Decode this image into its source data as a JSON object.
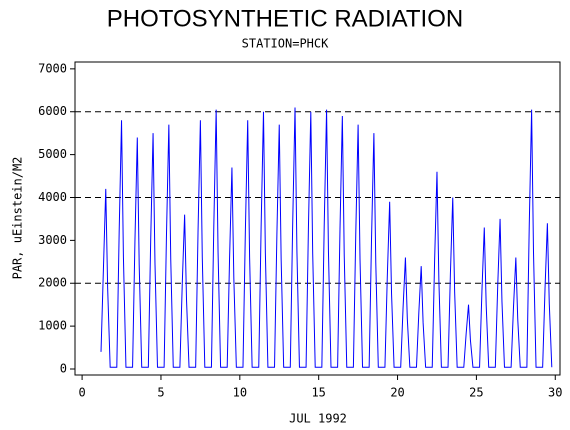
{
  "chart_data": {
    "type": "line",
    "title": "PHOTOSYNTHETIC RADIATION",
    "subtitle": "STATION=PHCK",
    "xlabel": "JUL 1992",
    "ylabel": "PAR, uEinstein/M2",
    "xlim": [
      -0.45,
      30.3
    ],
    "xticks": [
      0,
      5,
      10,
      15,
      20,
      25,
      30
    ],
    "ylim": [
      -140,
      7160
    ],
    "yticks": [
      0,
      1000,
      2000,
      3000,
      4000,
      5000,
      6000,
      7000
    ],
    "reference_lines": [
      2000,
      4000,
      6000
    ],
    "x": [
      1.2,
      1.35,
      1.5,
      1.62,
      1.78,
      2.2,
      2.35,
      2.5,
      2.62,
      2.78,
      3.2,
      3.35,
      3.5,
      3.62,
      3.78,
      4.2,
      4.35,
      4.5,
      4.62,
      4.78,
      5.2,
      5.35,
      5.5,
      5.62,
      5.78,
      6.2,
      6.35,
      6.5,
      6.62,
      6.78,
      7.2,
      7.35,
      7.5,
      7.62,
      7.78,
      8.2,
      8.35,
      8.5,
      8.62,
      8.78,
      9.2,
      9.35,
      9.5,
      9.62,
      9.78,
      10.2,
      10.35,
      10.5,
      10.62,
      10.78,
      11.2,
      11.35,
      11.5,
      11.62,
      11.78,
      12.2,
      12.35,
      12.5,
      12.62,
      12.78,
      13.2,
      13.35,
      13.5,
      13.62,
      13.78,
      14.2,
      14.35,
      14.5,
      14.62,
      14.78,
      15.2,
      15.35,
      15.5,
      15.62,
      15.78,
      16.2,
      16.35,
      16.5,
      16.62,
      16.78,
      17.2,
      17.35,
      17.5,
      17.62,
      17.78,
      18.2,
      18.35,
      18.5,
      18.62,
      18.78,
      19.2,
      19.35,
      19.5,
      19.62,
      19.78,
      20.2,
      20.35,
      20.5,
      20.62,
      20.78,
      21.2,
      21.35,
      21.5,
      21.62,
      21.78,
      22.2,
      22.35,
      22.5,
      22.62,
      22.78,
      23.2,
      23.35,
      23.5,
      23.62,
      23.78,
      24.2,
      24.35,
      24.5,
      24.62,
      24.78,
      25.2,
      25.35,
      25.5,
      25.62,
      25.78,
      26.2,
      26.35,
      26.5,
      26.62,
      26.78,
      27.2,
      27.35,
      27.5,
      27.62,
      27.78,
      28.2,
      28.35,
      28.5,
      28.62,
      28.78,
      29.2,
      29.35,
      29.5,
      29.62,
      29.78
    ],
    "series": [
      {
        "name": "PAR",
        "color": "#0000ff",
        "values": [
          400,
          2310,
          4200,
          1890,
          40,
          40,
          3190,
          5800,
          2610,
          40,
          40,
          2970,
          5400,
          2430,
          40,
          40,
          3025,
          5500,
          2475,
          40,
          40,
          3135,
          5700,
          2565,
          40,
          40,
          1980,
          3600,
          1620,
          40,
          40,
          3190,
          5800,
          2610,
          40,
          40,
          3328,
          6050,
          2723,
          40,
          40,
          2585,
          4700,
          2115,
          40,
          40,
          3190,
          5800,
          2610,
          40,
          40,
          3300,
          6000,
          2700,
          40,
          40,
          3135,
          5700,
          2565,
          40,
          40,
          3355,
          6100,
          2745,
          40,
          40,
          3300,
          6000,
          2700,
          40,
          40,
          3328,
          6050,
          2723,
          40,
          40,
          3245,
          5900,
          2655,
          40,
          40,
          3135,
          5700,
          2565,
          40,
          40,
          3025,
          5500,
          2475,
          40,
          40,
          2145,
          3900,
          1755,
          40,
          40,
          1430,
          2600,
          1170,
          40,
          40,
          1320,
          2400,
          1080,
          40,
          40,
          2530,
          4600,
          2070,
          40,
          40,
          2200,
          4000,
          1800,
          40,
          40,
          825,
          1500,
          675,
          40,
          40,
          1815,
          3300,
          1485,
          40,
          40,
          1925,
          3500,
          1575,
          40,
          40,
          1430,
          2600,
          1170,
          40,
          40,
          3328,
          6050,
          2723,
          40,
          40,
          1870,
          3400,
          1530,
          40
        ]
      }
    ]
  }
}
